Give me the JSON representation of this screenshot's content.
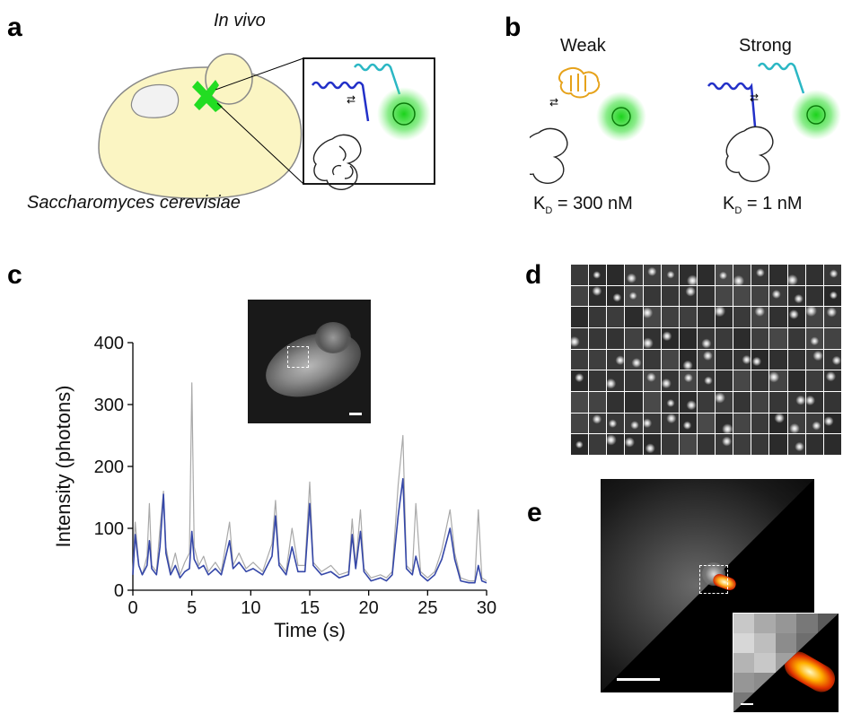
{
  "panels": {
    "a": {
      "letter": "a",
      "in_vivo_label": "In vivo",
      "organism_label": "Saccharomyces cerevisiae"
    },
    "b": {
      "letter": "b",
      "weak_label": "Weak",
      "strong_label": "Strong",
      "weak_kd_label": "K",
      "weak_kd_sub": "D",
      "weak_kd_value": " = 300 nM",
      "strong_kd_label": "K",
      "strong_kd_sub": "D",
      "strong_kd_value": " = 1 nM"
    },
    "c": {
      "letter": "c"
    },
    "d": {
      "letter": "d",
      "grid_rows": 9,
      "grid_cols": 15
    },
    "e": {
      "letter": "e"
    }
  },
  "colors": {
    "cell_fill": "#fbf5c3",
    "bud_neck_green": "#22dd22",
    "raw_trace": "#a9a9a9",
    "smoothed_trace": "#3547a8",
    "helix_blue": "#2230c8",
    "helix_cyan": "#2bb7c4",
    "helix_orange": "#e6a21a"
  },
  "chart_data": {
    "type": "line",
    "xlabel": "Time (s)",
    "ylabel": "Intensity (photons)",
    "xlim": [
      0,
      30
    ],
    "ylim": [
      0,
      400
    ],
    "xticks": [
      0,
      5,
      10,
      15,
      20,
      25,
      30
    ],
    "yticks": [
      0,
      100,
      200,
      300,
      400
    ],
    "series": [
      {
        "style": "raw",
        "points": [
          [
            0,
            30
          ],
          [
            0.2,
            110
          ],
          [
            0.5,
            40
          ],
          [
            0.8,
            25
          ],
          [
            1.2,
            55
          ],
          [
            1.4,
            140
          ],
          [
            1.6,
            40
          ],
          [
            2.0,
            30
          ],
          [
            2.3,
            100
          ],
          [
            2.6,
            160
          ],
          [
            2.8,
            70
          ],
          [
            3.2,
            30
          ],
          [
            3.6,
            60
          ],
          [
            4.0,
            25
          ],
          [
            4.4,
            45
          ],
          [
            4.8,
            60
          ],
          [
            5.0,
            335
          ],
          [
            5.2,
            70
          ],
          [
            5.6,
            40
          ],
          [
            6.0,
            55
          ],
          [
            6.4,
            30
          ],
          [
            7.0,
            45
          ],
          [
            7.5,
            30
          ],
          [
            8.2,
            110
          ],
          [
            8.5,
            40
          ],
          [
            9.0,
            60
          ],
          [
            9.6,
            35
          ],
          [
            10.2,
            45
          ],
          [
            11.0,
            30
          ],
          [
            11.8,
            75
          ],
          [
            12.1,
            145
          ],
          [
            12.4,
            45
          ],
          [
            13.0,
            30
          ],
          [
            13.5,
            100
          ],
          [
            14.0,
            40
          ],
          [
            14.6,
            40
          ],
          [
            15.0,
            175
          ],
          [
            15.3,
            45
          ],
          [
            16.0,
            30
          ],
          [
            16.8,
            40
          ],
          [
            17.5,
            25
          ],
          [
            18.3,
            30
          ],
          [
            18.6,
            115
          ],
          [
            18.9,
            40
          ],
          [
            19.3,
            130
          ],
          [
            19.6,
            35
          ],
          [
            20.2,
            20
          ],
          [
            21.0,
            25
          ],
          [
            21.5,
            20
          ],
          [
            22.0,
            30
          ],
          [
            22.5,
            170
          ],
          [
            22.9,
            250
          ],
          [
            23.2,
            40
          ],
          [
            23.7,
            30
          ],
          [
            24.0,
            140
          ],
          [
            24.4,
            30
          ],
          [
            25.0,
            20
          ],
          [
            25.6,
            30
          ],
          [
            26.2,
            65
          ],
          [
            26.9,
            130
          ],
          [
            27.3,
            60
          ],
          [
            27.8,
            20
          ],
          [
            28.5,
            15
          ],
          [
            29.0,
            15
          ],
          [
            29.3,
            130
          ],
          [
            29.6,
            20
          ],
          [
            30.0,
            15
          ]
        ]
      },
      {
        "style": "smoothed",
        "points": [
          [
            0,
            25
          ],
          [
            0.2,
            90
          ],
          [
            0.5,
            40
          ],
          [
            0.8,
            25
          ],
          [
            1.2,
            40
          ],
          [
            1.4,
            80
          ],
          [
            1.6,
            35
          ],
          [
            2.0,
            25
          ],
          [
            2.3,
            70
          ],
          [
            2.6,
            155
          ],
          [
            2.8,
            60
          ],
          [
            3.2,
            25
          ],
          [
            3.6,
            40
          ],
          [
            4.0,
            20
          ],
          [
            4.4,
            30
          ],
          [
            4.8,
            35
          ],
          [
            5.0,
            95
          ],
          [
            5.2,
            50
          ],
          [
            5.6,
            35
          ],
          [
            6.0,
            40
          ],
          [
            6.4,
            25
          ],
          [
            7.0,
            35
          ],
          [
            7.5,
            25
          ],
          [
            8.2,
            80
          ],
          [
            8.5,
            35
          ],
          [
            9.0,
            45
          ],
          [
            9.6,
            30
          ],
          [
            10.2,
            35
          ],
          [
            11.0,
            25
          ],
          [
            11.8,
            55
          ],
          [
            12.1,
            120
          ],
          [
            12.4,
            40
          ],
          [
            13.0,
            25
          ],
          [
            13.5,
            70
          ],
          [
            14.0,
            30
          ],
          [
            14.6,
            30
          ],
          [
            15.0,
            140
          ],
          [
            15.3,
            40
          ],
          [
            16.0,
            25
          ],
          [
            16.8,
            30
          ],
          [
            17.5,
            20
          ],
          [
            18.3,
            25
          ],
          [
            18.6,
            90
          ],
          [
            18.9,
            35
          ],
          [
            19.3,
            95
          ],
          [
            19.6,
            30
          ],
          [
            20.2,
            15
          ],
          [
            21.0,
            20
          ],
          [
            21.5,
            15
          ],
          [
            22.0,
            25
          ],
          [
            22.5,
            120
          ],
          [
            22.9,
            180
          ],
          [
            23.2,
            35
          ],
          [
            23.7,
            25
          ],
          [
            24.0,
            55
          ],
          [
            24.4,
            25
          ],
          [
            25.0,
            15
          ],
          [
            25.6,
            25
          ],
          [
            26.2,
            50
          ],
          [
            26.9,
            100
          ],
          [
            27.3,
            50
          ],
          [
            27.8,
            15
          ],
          [
            28.5,
            12
          ],
          [
            29.0,
            12
          ],
          [
            29.3,
            40
          ],
          [
            29.6,
            15
          ],
          [
            30.0,
            12
          ]
        ]
      }
    ]
  }
}
